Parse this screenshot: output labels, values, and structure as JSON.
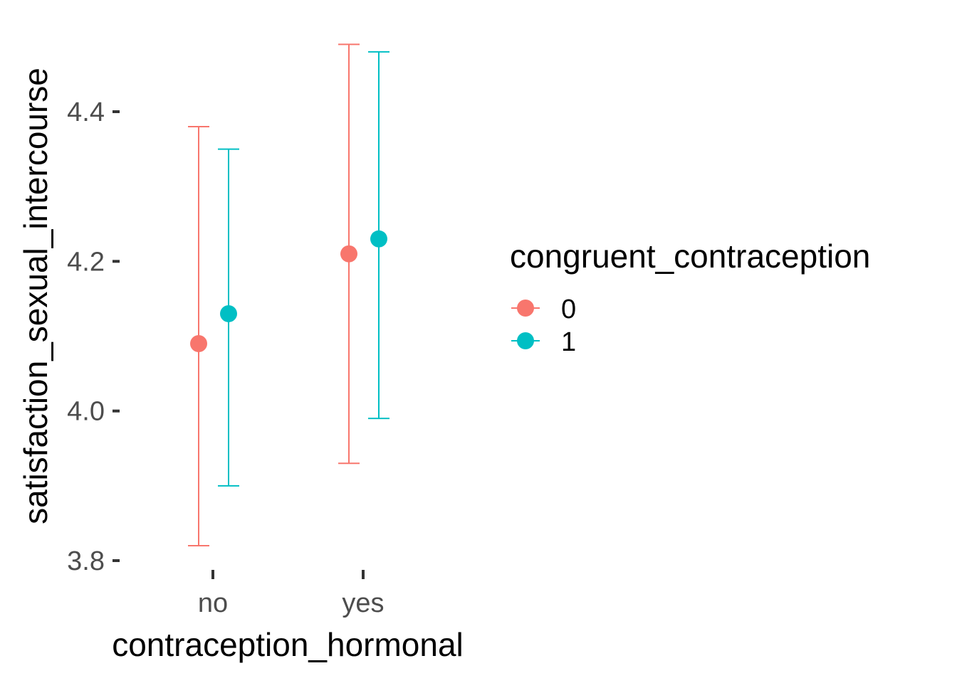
{
  "chart_data": {
    "type": "scatter",
    "xlabel": "contraception_hormonal",
    "ylabel": "satisfaction_sexual_intercourse",
    "categories": [
      "no",
      "yes"
    ],
    "ylim": [
      3.8,
      4.5
    ],
    "yticks": [
      "3.8",
      "4.0",
      "4.2",
      "4.4"
    ],
    "grid": false,
    "legend": {
      "title": "congruent_contraception",
      "placement": "right"
    },
    "series": [
      {
        "name": "0",
        "color": "#F8766D",
        "values": [
          4.09,
          4.21
        ],
        "lower": [
          3.82,
          3.93
        ],
        "upper": [
          4.38,
          4.49
        ]
      },
      {
        "name": "1",
        "color": "#00BFC4",
        "values": [
          4.13,
          4.23
        ],
        "lower": [
          3.9,
          3.99
        ],
        "upper": [
          4.35,
          4.48
        ]
      }
    ]
  }
}
